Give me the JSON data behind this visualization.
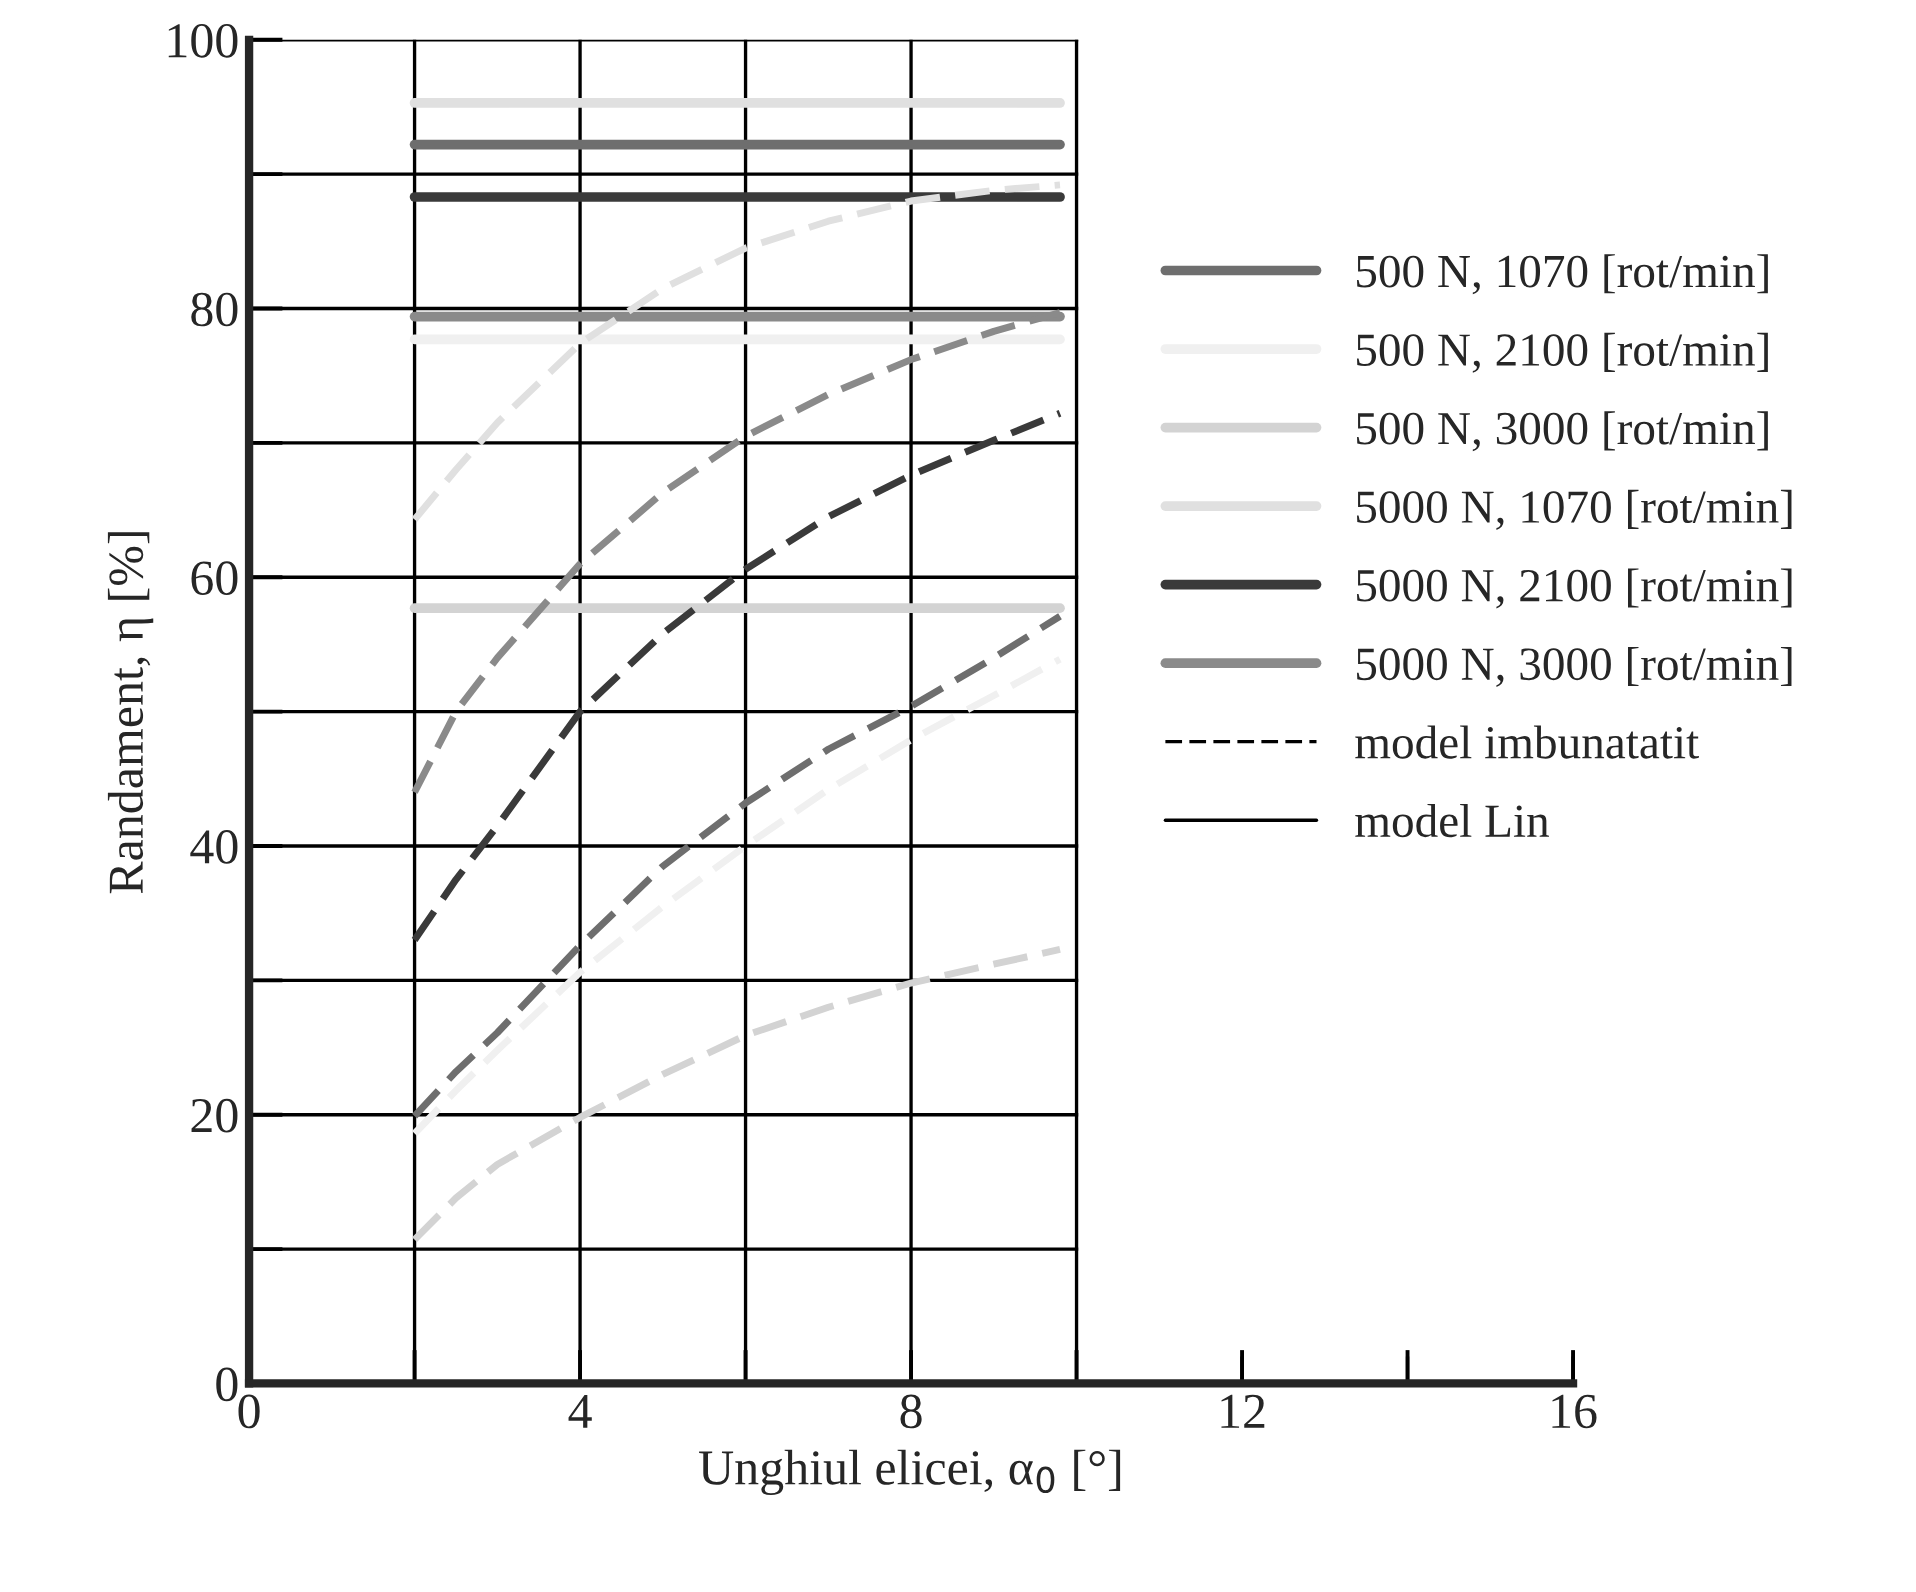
{
  "chart_data": {
    "type": "line",
    "xlabel": "Unghiul elicei, α$_{0}$ [°]",
    "ylabel": "Randament, η [%]",
    "xlim": [
      0,
      16
    ],
    "ylim": [
      0,
      100
    ],
    "xticks": [
      0,
      {
        "value": 2,
        "label": null
      },
      4,
      {
        "value": 6,
        "label": null
      },
      8,
      {
        "value": 10,
        "label": null
      },
      12,
      {
        "value": 14,
        "label": null
      },
      16
    ],
    "yticks": [
      0,
      {
        "value": 10,
        "label": null
      },
      20,
      {
        "value": 30,
        "label": null
      },
      40,
      {
        "value": 50,
        "label": null
      },
      60,
      {
        "value": 70,
        "label": null
      },
      80,
      {
        "value": 90,
        "label": null
      },
      100
    ],
    "grid": true,
    "legend": "right",
    "series": [
      {
        "name": "500 N, 1070 [rot/min]",
        "color": "#6e6e6e",
        "line_style": "solid",
        "x": [
          2,
          9.8
        ],
        "values": [
          92.2,
          92.2
        ]
      },
      {
        "name": "500 N, 2100 [rot/min]",
        "color": "#f0f0f0",
        "line_style": "solid",
        "x": [
          2,
          9.8
        ],
        "values": [
          77.7,
          77.7
        ]
      },
      {
        "name": "500 N, 3000 [rot/min]",
        "color": "#d3d3d3",
        "line_style": "solid",
        "x": [
          2,
          9.8
        ],
        "values": [
          57.7,
          57.7
        ]
      },
      {
        "name": "5000 N, 1070 [rot/min]",
        "color": "#e0e0e0",
        "line_style": "solid",
        "x": [
          2,
          9.8
        ],
        "values": [
          95.3,
          95.3
        ]
      },
      {
        "name": "5000 N, 2100 [rot/min]",
        "color": "#3a3a3a",
        "line_style": "solid",
        "x": [
          2,
          9.8
        ],
        "values": [
          88.3,
          88.3
        ]
      },
      {
        "name": "5000 N, 3000 [rot/min]",
        "color": "#8a8a8a",
        "line_style": "solid",
        "x": [
          2,
          9.8
        ],
        "values": [
          79.4,
          79.4
        ]
      },
      {
        "color": "#6e6e6e",
        "line_style": "dashed",
        "x": [
          2,
          2.5,
          3,
          4,
          5,
          6,
          7,
          8,
          9,
          9.8
        ],
        "values": [
          19.9,
          23.2,
          26.1,
          32.6,
          38.5,
          43.2,
          47.2,
          50.4,
          54,
          57.1
        ]
      },
      {
        "color": "#f0f0f0",
        "line_style": "dashed",
        "x": [
          2,
          2.5,
          3,
          4,
          5,
          6,
          7,
          8,
          9,
          9.8
        ],
        "values": [
          18.6,
          21.8,
          24.8,
          30.6,
          35.5,
          40,
          44.2,
          47.9,
          51.2,
          53.9
        ]
      },
      {
        "color": "#d3d3d3",
        "line_style": "dashed",
        "x": [
          2,
          2.5,
          3,
          4,
          5,
          6,
          7,
          8,
          9,
          9.8
        ],
        "values": [
          10.7,
          13.8,
          16.3,
          19.8,
          23,
          25.9,
          28,
          29.8,
          31.2,
          32.3
        ]
      },
      {
        "color": "#e0e0e0",
        "line_style": "dashed",
        "x": [
          2,
          2.5,
          3,
          4,
          5,
          6,
          7,
          8,
          9,
          9.8
        ],
        "values": [
          64.3,
          68,
          71.5,
          77.4,
          81.5,
          84.5,
          86.5,
          88,
          88.8,
          89.2
        ]
      },
      {
        "color": "#3a3a3a",
        "line_style": "dashed",
        "x": [
          2,
          2.5,
          3,
          4,
          5,
          6,
          7,
          8,
          9,
          9.8
        ],
        "values": [
          33,
          37.5,
          41.5,
          50,
          55.8,
          60.6,
          64.5,
          67.6,
          70.2,
          72.2
        ]
      },
      {
        "color": "#8a8a8a",
        "line_style": "dashed",
        "x": [
          2,
          2.5,
          3,
          4,
          5,
          6,
          7,
          8,
          9,
          9.8
        ],
        "values": [
          44,
          50,
          54,
          61,
          66.3,
          70.5,
          73.6,
          76.2,
          78.3,
          79.7
        ]
      },
      {
        "name": "model imbunatatit",
        "color": "#000000",
        "line_style": "dashed"
      },
      {
        "name": "model Lin",
        "color": "#000000",
        "line_style": "solid"
      }
    ]
  }
}
